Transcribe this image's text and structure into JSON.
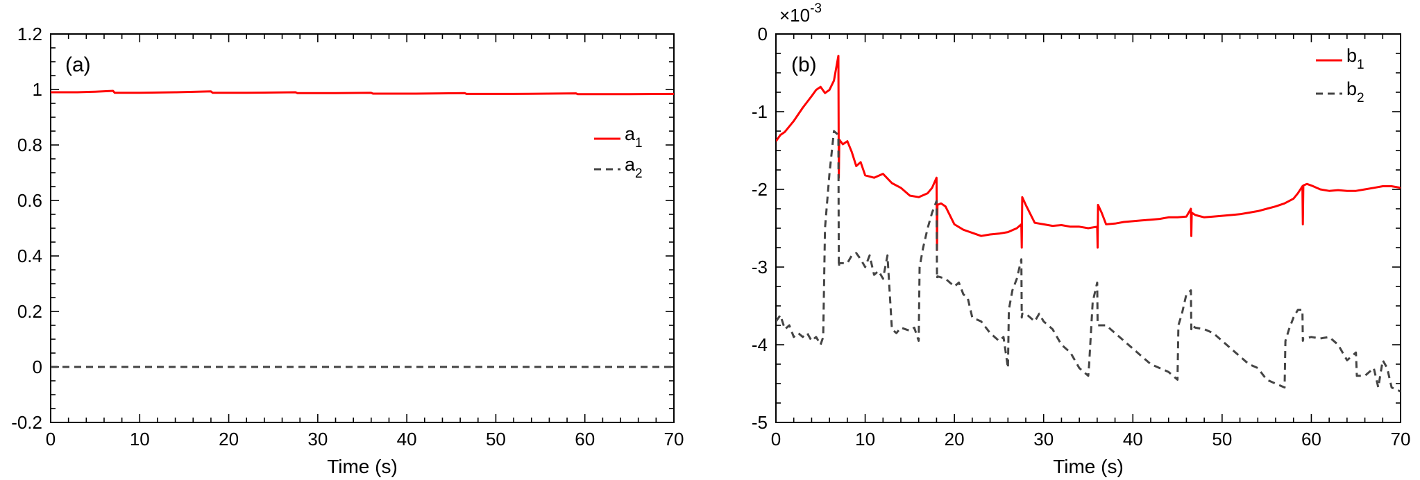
{
  "chart_data": [
    {
      "type": "line",
      "panel_label": "(a)",
      "xlabel": "Time (s)",
      "ylabel": "",
      "xlim": [
        0,
        70
      ],
      "ylim": [
        -0.2,
        1.2
      ],
      "xticks": [
        0,
        10,
        20,
        30,
        40,
        50,
        60,
        70
      ],
      "yticks": [
        -0.2,
        0,
        0.2,
        0.4,
        0.6,
        0.8,
        1,
        1.2
      ],
      "xtick_labels": [
        "0",
        "10",
        "20",
        "30",
        "40",
        "50",
        "60",
        "70"
      ],
      "ytick_labels": [
        "-0.2",
        "0",
        "0.2",
        "0.4",
        "0.6",
        "0.8",
        "1",
        "1.2"
      ],
      "legend_position": "right",
      "colors": {
        "a1": "#ff0000",
        "a2": "#444444"
      },
      "series": [
        {
          "name": "a",
          "subscript": "1",
          "style": "solid",
          "color": "#ff0000",
          "x": [
            0,
            3,
            5,
            7,
            7.2,
            10,
            14,
            18,
            18.2,
            22,
            27.5,
            27.7,
            32,
            36,
            36.2,
            41,
            46.5,
            46.7,
            52,
            59,
            59.2,
            65,
            70
          ],
          "y": [
            0.99,
            0.99,
            0.992,
            0.995,
            0.988,
            0.988,
            0.99,
            0.993,
            0.988,
            0.988,
            0.99,
            0.987,
            0.987,
            0.988,
            0.985,
            0.985,
            0.987,
            0.984,
            0.984,
            0.986,
            0.983,
            0.983,
            0.984
          ]
        },
        {
          "name": "a",
          "subscript": "2",
          "style": "dashed",
          "color": "#444444",
          "x": [
            0,
            70
          ],
          "y": [
            0,
            0
          ]
        }
      ]
    },
    {
      "type": "line",
      "panel_label": "(b)",
      "xlabel": "Time (s)",
      "ylabel": "",
      "multiplier": "×10",
      "multiplier_exponent": "-3",
      "xlim": [
        0,
        70
      ],
      "ylim": [
        -5,
        0
      ],
      "xticks": [
        0,
        10,
        20,
        30,
        40,
        50,
        60,
        70
      ],
      "yticks": [
        -5,
        -4,
        -3,
        -2,
        -1,
        0
      ],
      "xtick_labels": [
        "0",
        "10",
        "20",
        "30",
        "40",
        "50",
        "60",
        "70"
      ],
      "ytick_labels": [
        "-5",
        "-4",
        "-3",
        "-2",
        "-1",
        "0"
      ],
      "legend_position": "top-right",
      "colors": {
        "b1": "#ff0000",
        "b2": "#444444"
      },
      "series": [
        {
          "name": "b",
          "subscript": "1",
          "style": "solid",
          "color": "#ff0000",
          "x": [
            0,
            0.5,
            1,
            2,
            3,
            4,
            4.5,
            5,
            5.5,
            6,
            6.5,
            7,
            7.05,
            7.1,
            7.5,
            8,
            8.5,
            9,
            9.5,
            10,
            11,
            12,
            13,
            14,
            15,
            16,
            17,
            17.5,
            18,
            18.05,
            18.1,
            18.5,
            19,
            20,
            21,
            22,
            23,
            24,
            25,
            26,
            27,
            27.5,
            27.55,
            27.6,
            28,
            29,
            30,
            31,
            32,
            33,
            34,
            35,
            36,
            36.05,
            36.1,
            36.5,
            37,
            38,
            39,
            40,
            41,
            42,
            43,
            44,
            45,
            46,
            46.5,
            46.55,
            46.6,
            47,
            48,
            49,
            50,
            51,
            52,
            53,
            54,
            55,
            56,
            57,
            58,
            58.5,
            59,
            59.05,
            59.1,
            59.5,
            60,
            61,
            62,
            63,
            64,
            65,
            66,
            67,
            68,
            69,
            70
          ],
          "y": [
            -1.38,
            -1.3,
            -1.26,
            -1.12,
            -0.95,
            -0.8,
            -0.72,
            -0.68,
            -0.76,
            -0.72,
            -0.6,
            -0.28,
            -1.85,
            -1.36,
            -1.42,
            -1.38,
            -1.52,
            -1.7,
            -1.65,
            -1.82,
            -1.85,
            -1.8,
            -1.92,
            -1.98,
            -2.08,
            -2.1,
            -2.05,
            -1.98,
            -1.85,
            -2.78,
            -2.2,
            -2.18,
            -2.22,
            -2.45,
            -2.52,
            -2.56,
            -2.6,
            -2.58,
            -2.57,
            -2.55,
            -2.5,
            -2.45,
            -2.75,
            -2.1,
            -2.2,
            -2.43,
            -2.45,
            -2.47,
            -2.46,
            -2.48,
            -2.48,
            -2.5,
            -2.48,
            -2.75,
            -2.2,
            -2.3,
            -2.45,
            -2.44,
            -2.42,
            -2.41,
            -2.4,
            -2.39,
            -2.38,
            -2.36,
            -2.36,
            -2.35,
            -2.25,
            -2.6,
            -2.3,
            -2.33,
            -2.36,
            -2.35,
            -2.34,
            -2.33,
            -2.32,
            -2.3,
            -2.28,
            -2.25,
            -2.22,
            -2.18,
            -2.12,
            -2.05,
            -1.96,
            -2.45,
            -1.95,
            -1.93,
            -1.95,
            -2.0,
            -2.02,
            -2.01,
            -2.02,
            -2.02,
            -2.0,
            -1.98,
            -1.96,
            -1.96,
            -1.98
          ]
        },
        {
          "name": "b",
          "subscript": "2",
          "style": "dashed",
          "color": "#444444",
          "x": [
            0,
            0.5,
            1,
            1.5,
            2,
            2.5,
            3,
            3.5,
            4,
            4.5,
            5,
            5.3,
            5.5,
            6,
            6.5,
            7,
            7.05,
            7.1,
            8,
            8.5,
            9,
            9.5,
            10,
            10.5,
            11,
            11.5,
            12,
            12.5,
            13,
            13.5,
            14,
            15,
            15.5,
            16,
            16.1,
            16.5,
            17,
            17.5,
            18,
            18.05,
            18.1,
            19,
            20,
            20.5,
            21,
            21.5,
            22,
            23,
            24,
            25,
            25.5,
            26,
            26.1,
            26.5,
            27,
            27.5,
            27.55,
            27.6,
            28,
            28.5,
            29,
            29.5,
            30,
            31,
            32,
            33,
            34,
            35,
            35.1,
            35.5,
            36,
            36.05,
            36.1,
            37,
            38,
            39,
            40,
            41,
            42,
            43,
            44,
            45,
            45.1,
            45.5,
            46,
            46.5,
            46.55,
            46.6,
            47,
            48,
            49,
            50,
            51,
            52,
            53,
            54,
            55,
            56,
            57,
            57.1,
            57.5,
            58,
            58.5,
            59,
            59.05,
            59.1,
            60,
            61,
            62,
            63,
            64,
            65,
            65.1,
            66,
            67,
            67.5,
            68,
            68.5,
            69,
            70
          ],
          "y": [
            -3.7,
            -3.62,
            -3.8,
            -3.75,
            -3.9,
            -3.85,
            -3.9,
            -3.85,
            -3.95,
            -3.9,
            -4.0,
            -3.9,
            -2.5,
            -1.8,
            -1.25,
            -1.3,
            -3.0,
            -2.95,
            -2.95,
            -2.85,
            -2.82,
            -2.9,
            -3.0,
            -2.85,
            -3.1,
            -3.05,
            -3.15,
            -2.85,
            -3.8,
            -3.85,
            -3.78,
            -3.82,
            -3.78,
            -3.95,
            -3.0,
            -2.75,
            -2.5,
            -2.3,
            -2.15,
            -3.15,
            -3.12,
            -3.15,
            -3.25,
            -3.2,
            -3.35,
            -3.4,
            -3.65,
            -3.7,
            -3.85,
            -3.95,
            -3.9,
            -4.3,
            -3.55,
            -3.3,
            -3.15,
            -2.9,
            -3.65,
            -3.6,
            -3.6,
            -3.65,
            -3.7,
            -3.6,
            -3.7,
            -3.8,
            -4.0,
            -4.1,
            -4.3,
            -4.4,
            -4.25,
            -3.45,
            -3.2,
            -3.75,
            -3.75,
            -3.75,
            -3.85,
            -3.95,
            -4.05,
            -4.15,
            -4.25,
            -4.3,
            -4.35,
            -4.45,
            -3.75,
            -3.6,
            -3.35,
            -3.3,
            -3.8,
            -3.75,
            -3.78,
            -3.8,
            -3.85,
            -3.95,
            -4.05,
            -4.15,
            -4.25,
            -4.3,
            -4.45,
            -4.5,
            -4.55,
            -3.95,
            -3.8,
            -3.65,
            -3.55,
            -3.55,
            -3.95,
            -3.92,
            -3.9,
            -3.92,
            -3.9,
            -4.0,
            -4.2,
            -4.1,
            -4.4,
            -4.4,
            -4.3,
            -4.55,
            -4.2,
            -4.3,
            -4.55,
            -4.6
          ]
        }
      ]
    }
  ]
}
